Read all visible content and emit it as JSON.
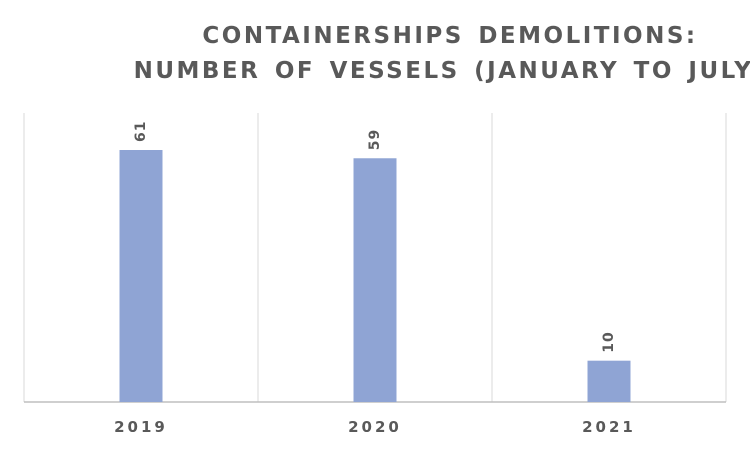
{
  "chart_data": {
    "type": "bar",
    "title": [
      "CONTAINERSHIPS DEMOLITIONS:",
      "NUMBER OF VESSELS (JANUARY TO JULY)"
    ],
    "categories": [
      "2019",
      "2020",
      "2021"
    ],
    "series": [
      {
        "values": [
          61,
          59,
          10
        ]
      }
    ],
    "data_labels": [
      "61",
      "59",
      "10"
    ],
    "xlabel": "",
    "ylabel": "",
    "ylim": [
      0,
      61
    ],
    "grid": "vertical category separators",
    "legend": "none",
    "bar_color": "#8FA4D4",
    "axis_color": "#BFBFBF",
    "text_color": "#595959"
  }
}
